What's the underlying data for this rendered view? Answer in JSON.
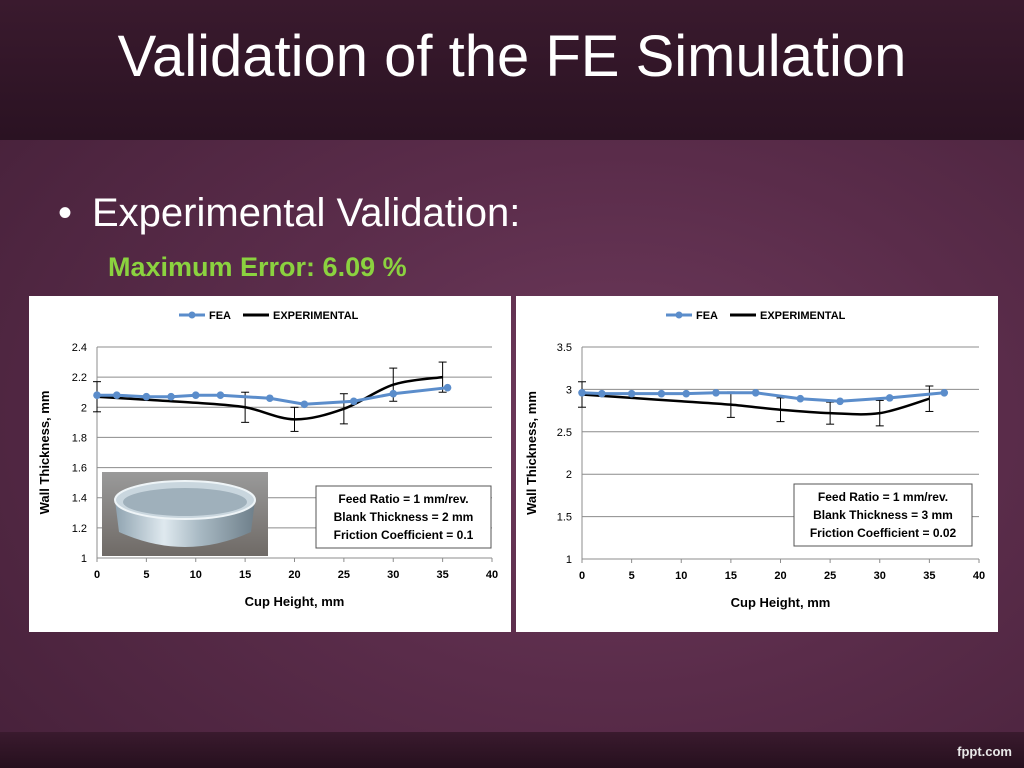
{
  "slide": {
    "title": "Validation of the FE Simulation",
    "bullet": "Experimental Validation:",
    "subheading": "Maximum Error: 6.09 %",
    "brand": "fppt.com"
  },
  "colors": {
    "fea": "#5b8dcb",
    "experimental": "#000000",
    "accent": "#8bd23f"
  },
  "chart_data": [
    {
      "type": "line",
      "xlabel": "Cup Height, mm",
      "ylabel": "Wall Thickness, mm",
      "xlim": [
        0,
        40
      ],
      "ylim": [
        1,
        2.4
      ],
      "xticks": [
        "0",
        "5",
        "10",
        "15",
        "20",
        "25",
        "30",
        "35",
        "40"
      ],
      "yticks": [
        "1",
        "1.2",
        "1.4",
        "1.6",
        "1.8",
        "2",
        "2.2",
        "2.4"
      ],
      "grid": true,
      "legend": "top",
      "series": [
        {
          "name": "FEA",
          "x": [
            0,
            2,
            5,
            7.5,
            10,
            12.5,
            17.5,
            21,
            26,
            30,
            35.5
          ],
          "y": [
            2.08,
            2.08,
            2.07,
            2.07,
            2.08,
            2.08,
            2.06,
            2.02,
            2.04,
            2.09,
            2.13
          ]
        },
        {
          "name": "EXPERIMENTAL",
          "x": [
            0,
            5,
            10,
            15,
            20,
            25,
            30,
            35
          ],
          "y": [
            2.07,
            2.05,
            2.03,
            2.0,
            1.92,
            1.99,
            2.15,
            2.2
          ],
          "error": [
            0.1,
            0,
            0,
            0.1,
            0.08,
            0.1,
            0.11,
            0.1
          ]
        }
      ],
      "annotations": [
        "Feed Ratio = 1 mm/rev.",
        "Blank Thickness = 2 mm",
        "Friction Coefficient = 0.1"
      ],
      "inset_photo": "aluminum-cup-photo"
    },
    {
      "type": "line",
      "xlabel": "Cup Height, mm",
      "ylabel": "Wall Thickness, mm",
      "xlim": [
        0,
        40
      ],
      "ylim": [
        1,
        3.5
      ],
      "xticks": [
        "0",
        "5",
        "10",
        "15",
        "20",
        "25",
        "30",
        "35",
        "40"
      ],
      "yticks": [
        "1",
        "1.5",
        "2",
        "2.5",
        "3",
        "3.5"
      ],
      "grid": true,
      "legend": "top",
      "series": [
        {
          "name": "FEA",
          "x": [
            0,
            2,
            5,
            8,
            10.5,
            13.5,
            17.5,
            22,
            26,
            31,
            36.5
          ],
          "y": [
            2.96,
            2.95,
            2.95,
            2.95,
            2.95,
            2.96,
            2.96,
            2.89,
            2.86,
            2.9,
            2.96
          ]
        },
        {
          "name": "EXPERIMENTAL",
          "x": [
            0,
            5,
            10,
            15,
            20,
            25,
            30,
            35
          ],
          "y": [
            2.94,
            2.9,
            2.86,
            2.82,
            2.76,
            2.72,
            2.72,
            2.89
          ],
          "error": [
            0.15,
            0,
            0,
            0.15,
            0.14,
            0.13,
            0.15,
            0.15
          ]
        }
      ],
      "annotations": [
        "Feed Ratio = 1 mm/rev.",
        "Blank Thickness = 3 mm",
        "Friction Coefficient = 0.02"
      ]
    }
  ]
}
